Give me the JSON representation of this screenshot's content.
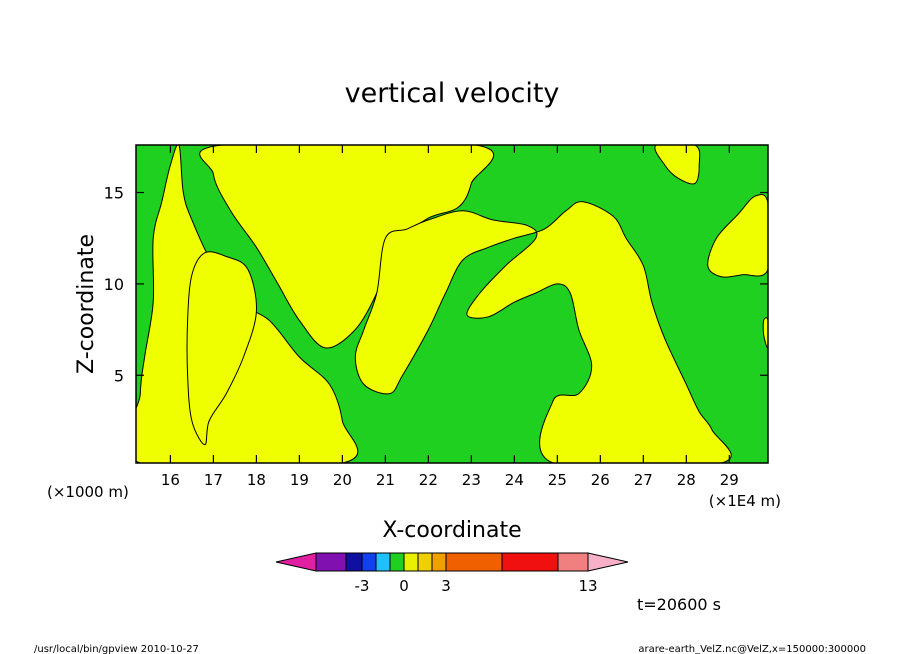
{
  "chart_data": {
    "type": "filled-contour",
    "title": "vertical velocity",
    "xlabel": "X-coordinate",
    "ylabel": "Z-coordinate",
    "x_unit": "(×1E4 m)",
    "y_unit": "(×1000 m)",
    "xlim": [
      15.2,
      29.9
    ],
    "ylim": [
      0.2,
      17.6
    ],
    "x_ticks": [
      16,
      17,
      18,
      19,
      20,
      21,
      22,
      23,
      24,
      25,
      26,
      27,
      28,
      29
    ],
    "y_ticks": [
      5,
      10,
      15
    ],
    "time_label": "t=20600 s",
    "colorbar": {
      "colors": [
        "#e020a0",
        "#8010b0",
        "#1010a0",
        "#1040f0",
        "#20c0ff",
        "#20d020",
        "#e8f000",
        "#f0d000",
        "#f0a000",
        "#f06000",
        "#f01010",
        "#f08080",
        "#f8b0c8"
      ],
      "tick_labels": [
        "-3",
        "0",
        "3",
        "13"
      ],
      "tick_values": [
        -3,
        0,
        3,
        13
      ]
    },
    "regions": [
      {
        "color": "#f0ff00",
        "label": "yellow",
        "points": [
          [
            16.2,
            17.6
          ],
          [
            16.3,
            15.0
          ],
          [
            16.5,
            13.5
          ],
          [
            17.0,
            11.0
          ],
          [
            17.6,
            9.0
          ],
          [
            18.3,
            8.0
          ],
          [
            19.0,
            6.0
          ],
          [
            19.7,
            4.5
          ],
          [
            20.0,
            2.5
          ],
          [
            20.0,
            0.2
          ],
          [
            15.3,
            0.2
          ],
          [
            15.3,
            4.0
          ],
          [
            15.4,
            6.0
          ],
          [
            15.6,
            9.0
          ],
          [
            15.6,
            12.5
          ],
          [
            15.8,
            14.5
          ],
          [
            16.0,
            16.5
          ]
        ]
      },
      {
        "color": "#f0ff00",
        "label": "yellow",
        "points": [
          [
            16.8,
            11.7
          ],
          [
            17.3,
            11.5
          ],
          [
            17.8,
            10.8
          ],
          [
            18.0,
            8.5
          ],
          [
            17.7,
            6.0
          ],
          [
            17.3,
            4.0
          ],
          [
            16.9,
            2.5
          ],
          [
            16.8,
            1.2
          ],
          [
            16.5,
            2.5
          ],
          [
            16.4,
            5.0
          ],
          [
            16.4,
            8.0
          ],
          [
            16.5,
            10.5
          ]
        ]
      },
      {
        "color": "#f0ff00",
        "label": "yellow",
        "points": [
          [
            17.2,
            17.6
          ],
          [
            17.0,
            16.0
          ],
          [
            17.4,
            14.0
          ],
          [
            18.0,
            12.0
          ],
          [
            18.5,
            10.0
          ],
          [
            19.0,
            8.0
          ],
          [
            19.6,
            6.5
          ],
          [
            20.3,
            7.5
          ],
          [
            20.8,
            9.5
          ],
          [
            21.0,
            11.0
          ],
          [
            21.4,
            12.5
          ],
          [
            22.0,
            13.6
          ],
          [
            22.7,
            14.2
          ],
          [
            23.0,
            15.5
          ],
          [
            23.1,
            17.6
          ]
        ]
      },
      {
        "color": "#f0ff00",
        "label": "yellow",
        "points": [
          [
            21.0,
            12.5
          ],
          [
            21.5,
            13.0
          ],
          [
            22.0,
            13.5
          ],
          [
            22.8,
            14.0
          ],
          [
            23.5,
            13.5
          ],
          [
            24.3,
            13.2
          ],
          [
            24.5,
            12.5
          ],
          [
            23.8,
            11.0
          ],
          [
            23.2,
            9.5
          ],
          [
            22.9,
            8.3
          ],
          [
            23.4,
            8.2
          ],
          [
            24.0,
            9.0
          ],
          [
            24.5,
            9.5
          ],
          [
            25.0,
            10.0
          ],
          [
            25.3,
            9.5
          ],
          [
            25.5,
            7.5
          ],
          [
            25.8,
            5.5
          ],
          [
            25.5,
            4.0
          ],
          [
            24.9,
            3.6
          ],
          [
            24.9,
            0.2
          ],
          [
            28.8,
            0.2
          ],
          [
            28.6,
            2.0
          ],
          [
            28.3,
            3.0
          ],
          [
            28.0,
            4.5
          ],
          [
            27.5,
            7.0
          ],
          [
            27.2,
            9.0
          ],
          [
            27.0,
            11.0
          ],
          [
            26.6,
            12.5
          ],
          [
            26.3,
            13.7
          ],
          [
            25.6,
            14.5
          ],
          [
            25.2,
            14.0
          ],
          [
            24.7,
            13.0
          ],
          [
            24.0,
            12.5
          ],
          [
            23.4,
            12.0
          ],
          [
            22.8,
            11.3
          ],
          [
            22.4,
            9.5
          ],
          [
            22.0,
            7.5
          ],
          [
            21.4,
            5.0
          ],
          [
            21.1,
            4.0
          ],
          [
            20.5,
            4.5
          ],
          [
            20.3,
            6.0
          ],
          [
            20.5,
            7.5
          ],
          [
            20.8,
            9.5
          ]
        ]
      },
      {
        "color": "#f0ff00",
        "label": "yellow",
        "points": [
          [
            27.3,
            17.6
          ],
          [
            27.5,
            16.5
          ],
          [
            27.8,
            15.8
          ],
          [
            28.2,
            15.5
          ],
          [
            28.3,
            16.5
          ],
          [
            28.2,
            17.6
          ]
        ]
      },
      {
        "color": "#f0ff00",
        "label": "yellow",
        "points": [
          [
            28.5,
            11.0
          ],
          [
            28.7,
            12.5
          ],
          [
            29.2,
            13.8
          ],
          [
            29.6,
            14.8
          ],
          [
            29.9,
            14.4
          ],
          [
            29.9,
            10.8
          ],
          [
            29.3,
            10.5
          ],
          [
            28.8,
            10.4
          ]
        ]
      },
      {
        "color": "#f0ff00",
        "label": "yellow",
        "points": [
          [
            29.8,
            8.0
          ],
          [
            29.9,
            8.0
          ],
          [
            29.9,
            6.5
          ],
          [
            29.8,
            7.2
          ]
        ]
      }
    ]
  },
  "footer": {
    "left": "/usr/local/bin/gpview  2010-10-27",
    "right": "arare-earth_VelZ.nc@VelZ,x=150000:300000"
  }
}
